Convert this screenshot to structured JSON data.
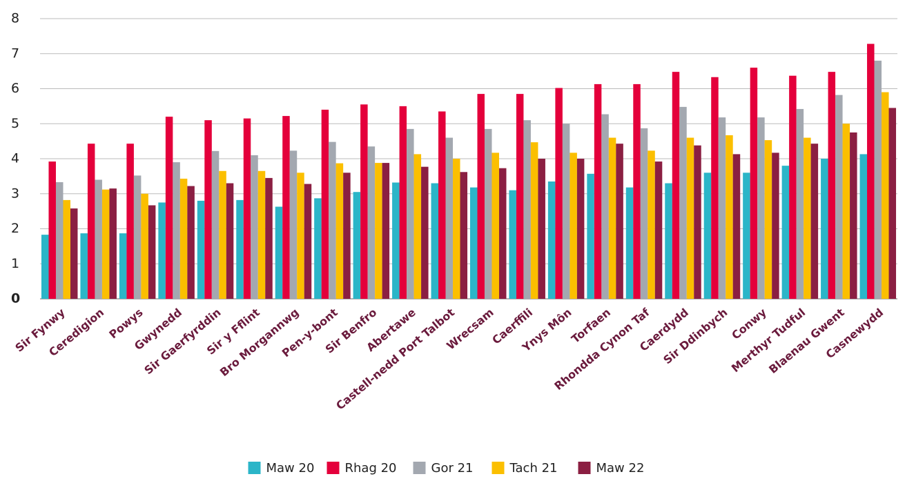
{
  "chart_data": {
    "type": "bar",
    "categories": [
      "Sir Fynwy",
      "Ceredigion",
      "Powys",
      "Gwynedd",
      "Sir Gaerfyrddin",
      "Sir y Fflint",
      "Bro Morgannwg",
      "Pen-y-bont",
      "Sir Benfro",
      "Abertawe",
      "Castell-nedd Port Talbot",
      "Wrecsam",
      "Caerffili",
      "Ynys Môn",
      "Torfaen",
      "Rhondda Cynon Taf",
      "Caerdydd",
      "Sir Ddinbych",
      "Conwy",
      "Merthyr Tudful",
      "Blaenau Gwent",
      "Casnewydd"
    ],
    "series": [
      {
        "name": "Maw 20",
        "color": "#2bb5c8",
        "values": [
          1.83,
          1.87,
          1.87,
          2.75,
          2.8,
          2.82,
          2.63,
          2.87,
          3.05,
          3.32,
          3.3,
          3.18,
          3.1,
          3.35,
          3.57,
          3.18,
          3.3,
          3.6,
          3.6,
          3.8,
          4.0,
          4.13
        ]
      },
      {
        "name": "Rhag 20",
        "color": "#e4003b",
        "values": [
          3.92,
          4.43,
          4.43,
          5.2,
          5.1,
          5.15,
          5.22,
          5.4,
          5.55,
          5.5,
          5.35,
          5.85,
          5.85,
          6.02,
          6.13,
          6.13,
          6.48,
          6.33,
          6.6,
          6.37,
          6.48,
          7.28
        ]
      },
      {
        "name": "Gor 21",
        "color": "#a3a8b0",
        "values": [
          3.33,
          3.4,
          3.52,
          3.9,
          4.22,
          4.1,
          4.23,
          4.48,
          4.35,
          4.85,
          4.6,
          4.85,
          5.1,
          5.0,
          5.27,
          4.87,
          5.48,
          5.18,
          5.18,
          5.42,
          5.82,
          6.8
        ]
      },
      {
        "name": "Tach 21",
        "color": "#fbbf00",
        "values": [
          2.82,
          3.12,
          3.0,
          3.43,
          3.65,
          3.65,
          3.6,
          3.87,
          3.88,
          4.13,
          4.0,
          4.17,
          4.47,
          4.17,
          4.6,
          4.23,
          4.6,
          4.67,
          4.53,
          4.6,
          5.0,
          5.9
        ]
      },
      {
        "name": "Maw 22",
        "color": "#8b1f42",
        "values": [
          2.58,
          3.15,
          2.67,
          3.22,
          3.3,
          3.45,
          3.28,
          3.6,
          3.88,
          3.77,
          3.62,
          3.73,
          4.0,
          4.0,
          4.43,
          3.92,
          4.38,
          4.13,
          4.17,
          4.43,
          4.75,
          5.45
        ]
      }
    ],
    "ylim": [
      0,
      8
    ],
    "yticks": [
      0,
      1,
      2,
      3,
      4,
      5,
      6,
      7,
      8
    ],
    "grid": true,
    "legend": "bottom"
  }
}
